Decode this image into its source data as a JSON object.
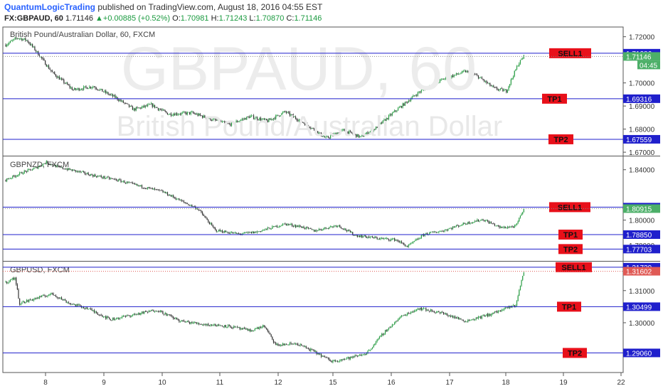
{
  "header": {
    "brand": "QuantumLogicTrading",
    "published": "published on TradingView.com, August 18, 2016 04:55 EST",
    "symbol": "FX:GBPAUD, 60",
    "last": "1.71146",
    "change_arrow": "▲",
    "change": "+0.00885 (+0.52%)",
    "o_label": "O:",
    "o": "1.70981",
    "h_label": "H:",
    "h": "1.71243",
    "l_label": "L:",
    "l": "1.70870",
    "c_label": "C:",
    "c": "1.71146"
  },
  "colors": {
    "up": "#2a9d45",
    "down": "#333333",
    "level_line": "#1f1fcc",
    "label_bg": "#e8101a",
    "price_tag": "#1f1fcc",
    "last_up": "#4caf68",
    "last_sell": "#e05a55"
  },
  "chart_data": [
    {
      "type": "candlestick",
      "title": "British Pound/Australian Dollar, 60, FXCM",
      "watermark_symbol": "GBPAUD, 60",
      "watermark_name": "British Pound/Australian Dollar",
      "y_ticks": [
        "1.72000",
        "1.70000",
        "1.69000",
        "1.68000",
        "1.67000"
      ],
      "ylim": [
        1.6688,
        1.7242
      ],
      "levels": [
        {
          "label": "SELL1",
          "price": "1.71286"
        },
        {
          "label": "TP1",
          "price": "1.69316"
        },
        {
          "label": "TP2",
          "price": "1.67559"
        }
      ],
      "last_price": "1.71146",
      "countdown": "04:45",
      "anchors": [
        [
          0,
          1.7165
        ],
        [
          10,
          1.7195
        ],
        [
          18,
          1.7185
        ],
        [
          25,
          1.7145
        ],
        [
          40,
          1.7045
        ],
        [
          58,
          1.697
        ],
        [
          75,
          1.6985
        ],
        [
          95,
          1.6935
        ],
        [
          110,
          1.6885
        ],
        [
          125,
          1.6905
        ],
        [
          140,
          1.6865
        ],
        [
          160,
          1.687
        ],
        [
          175,
          1.6845
        ],
        [
          192,
          1.682
        ],
        [
          210,
          1.6855
        ],
        [
          225,
          1.6835
        ],
        [
          240,
          1.6875
        ],
        [
          260,
          1.6815
        ],
        [
          275,
          1.676
        ],
        [
          290,
          1.6795
        ],
        [
          305,
          1.6765
        ],
        [
          318,
          1.6805
        ],
        [
          335,
          1.688
        ],
        [
          355,
          1.696
        ],
        [
          375,
          1.7015
        ],
        [
          395,
          1.705
        ],
        [
          405,
          1.703
        ],
        [
          420,
          1.6975
        ],
        [
          430,
          1.6965
        ],
        [
          440,
          1.708
        ],
        [
          445,
          1.7115
        ]
      ]
    },
    {
      "type": "candlestick",
      "title": "GBPNZD, FXCM",
      "y_ticks": [
        "1.84000",
        "1.80000",
        "1.78000"
      ],
      "ylim": [
        1.7682,
        1.85
      ],
      "levels": [
        {
          "label": "SELL1",
          "price": "1.81029"
        },
        {
          "label": "TP1",
          "price": "1.78850"
        },
        {
          "label": "TP2",
          "price": "1.77703"
        }
      ],
      "last_price": "1.80915",
      "anchors": [
        [
          0,
          1.832
        ],
        [
          15,
          1.838
        ],
        [
          25,
          1.841
        ],
        [
          35,
          1.846
        ],
        [
          45,
          1.842
        ],
        [
          60,
          1.839
        ],
        [
          75,
          1.8355
        ],
        [
          95,
          1.832
        ],
        [
          115,
          1.827
        ],
        [
          135,
          1.8225
        ],
        [
          150,
          1.8155
        ],
        [
          165,
          1.809
        ],
        [
          180,
          1.792
        ],
        [
          200,
          1.789
        ],
        [
          215,
          1.7905
        ],
        [
          240,
          1.797
        ],
        [
          255,
          1.7945
        ],
        [
          265,
          1.7915
        ],
        [
          285,
          1.796
        ],
        [
          300,
          1.788
        ],
        [
          320,
          1.7855
        ],
        [
          335,
          1.7845
        ],
        [
          345,
          1.779
        ],
        [
          360,
          1.789
        ],
        [
          375,
          1.7915
        ],
        [
          395,
          1.7975
        ],
        [
          410,
          1.8005
        ],
        [
          425,
          1.794
        ],
        [
          438,
          1.795
        ],
        [
          445,
          1.809
        ]
      ]
    },
    {
      "type": "candlestick",
      "title": "GBPUSD, FXCM",
      "y_ticks": [
        "1.31000",
        "1.30000"
      ],
      "ylim": [
        1.2845,
        1.3188
      ],
      "levels": [
        {
          "label": "SELL1",
          "price": "1.31729"
        },
        {
          "label": "TP1",
          "price": "1.30499"
        },
        {
          "label": "TP2",
          "price": "1.29060"
        }
      ],
      "last_price": "1.31602",
      "anchors": [
        [
          0,
          1.3125
        ],
        [
          8,
          1.314
        ],
        [
          12,
          1.306
        ],
        [
          25,
          1.3075
        ],
        [
          40,
          1.309
        ],
        [
          55,
          1.306
        ],
        [
          70,
          1.3045
        ],
        [
          90,
          1.301
        ],
        [
          110,
          1.3025
        ],
        [
          130,
          1.304
        ],
        [
          150,
          1.3005
        ],
        [
          170,
          1.2995
        ],
        [
          190,
          1.299
        ],
        [
          210,
          1.2975
        ],
        [
          222,
          1.299
        ],
        [
          232,
          1.293
        ],
        [
          250,
          1.2935
        ],
        [
          265,
          1.291
        ],
        [
          280,
          1.288
        ],
        [
          295,
          1.289
        ],
        [
          310,
          1.2905
        ],
        [
          325,
          1.297
        ],
        [
          340,
          1.302
        ],
        [
          355,
          1.3045
        ],
        [
          375,
          1.303
        ],
        [
          395,
          1.3005
        ],
        [
          415,
          1.3025
        ],
        [
          438,
          1.3055
        ],
        [
          445,
          1.316
        ]
      ]
    }
  ],
  "x_axis": {
    "ticks": [
      "8",
      "9",
      "10",
      "11",
      "12",
      "15",
      "16",
      "17",
      "18",
      "19",
      "22"
    ]
  }
}
